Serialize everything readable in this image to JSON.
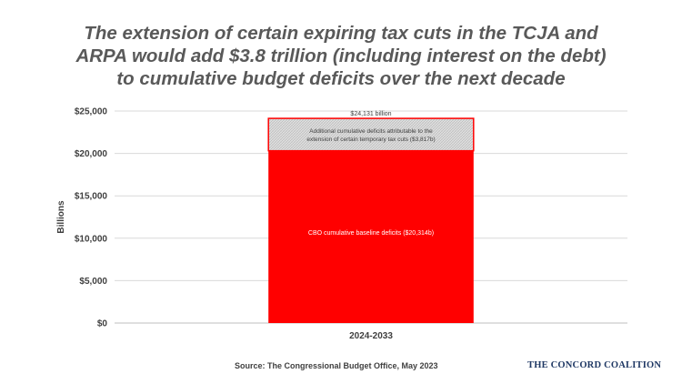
{
  "title": {
    "line1": "The extension of certain expiring tax cuts in the TCJA and",
    "line2": "ARPA would add $3.8 trillion (including interest on the debt)",
    "line3": "to cumulative budget deficits over the next decade"
  },
  "chart_data": {
    "type": "bar",
    "stacked": true,
    "categories": [
      "2024-2033"
    ],
    "series": [
      {
        "name": "",
        "values": [
          20314
        ],
        "label": "CBO cumulative baseline deficits ($20,314b)",
        "color": "#ff0000"
      },
      {
        "name": "",
        "values": [
          3817
        ],
        "label": "Additional cumulative deficits attributable to the extension of certain temporary tax cuts ($3,817b)",
        "color": "#ff0000",
        "pattern": "crosshatch"
      }
    ],
    "total_label": "$24,131 billion",
    "ylabel": "Billions",
    "xlabel": "",
    "ylim": [
      0,
      25000
    ],
    "yticks": [
      0,
      5000,
      10000,
      15000,
      20000,
      25000
    ],
    "ytick_labels": [
      "$0",
      "$5,000",
      "$10,000",
      "$15,000",
      "$20,000",
      "$25,000"
    ],
    "grid": true
  },
  "footer": {
    "source": "Source: The Congressional Budget Office,  May 2023",
    "brand": "THE CONCORD COALITION"
  }
}
